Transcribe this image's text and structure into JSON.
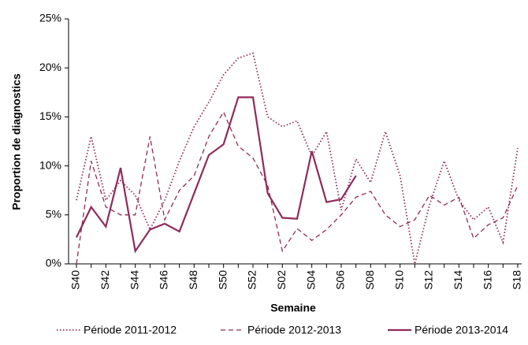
{
  "chart_data": {
    "type": "line",
    "y_label": "Proportion de diagnostics",
    "x_label": "Semaine",
    "categories": [
      "S40",
      null,
      "S42",
      null,
      "S44",
      null,
      "S46",
      null,
      "S48",
      null,
      "S50",
      null,
      "S52",
      null,
      "S02",
      null,
      "S04",
      null,
      "S06",
      null,
      "S08",
      null,
      "S10",
      null,
      "S12",
      null,
      "S14",
      null,
      "S16",
      null,
      "S18"
    ],
    "series": [
      {
        "name": "Période 2011-2012",
        "color": "#8e2b5a",
        "style": "dotted",
        "values": [
          6.5,
          13,
          6.5,
          8.5,
          7,
          3.5,
          6.5,
          10.5,
          14,
          16.5,
          19.3,
          21,
          21.5,
          15,
          14,
          14.6,
          11,
          13.5,
          5.5,
          10.7,
          8.3,
          13.5,
          9,
          0,
          6,
          10.5,
          6.5,
          4.5,
          5.8,
          2.2,
          11.8
        ]
      },
      {
        "name": "Période 2012-2013",
        "color": "#8e2b5a",
        "style": "dashed",
        "values": [
          0,
          10.5,
          5.8,
          5,
          5,
          13,
          4.5,
          7.5,
          9,
          13,
          15.5,
          12,
          10.8,
          8,
          1.3,
          3.6,
          2.4,
          3.5,
          5,
          6.8,
          7.4,
          5,
          3.8,
          4.5,
          7,
          6,
          6.8,
          2.6,
          4,
          4.7,
          8
        ]
      },
      {
        "name": "Période 2013-2014",
        "color": "#8e2b5a",
        "style": "solid",
        "values": [
          2.7,
          5.8,
          3.8,
          9.8,
          1.3,
          3.5,
          4.1,
          3.3,
          7.2,
          11.1,
          12.2,
          17,
          17,
          7.2,
          4.7,
          4.6,
          11.5,
          6.3,
          6.6,
          9,
          null,
          null,
          null,
          null,
          null,
          null,
          null,
          null,
          null,
          null,
          null
        ]
      }
    ],
    "ylim": [
      0,
      25
    ],
    "yticks": [
      {
        "value": 0,
        "label": "0%"
      },
      {
        "value": 5,
        "label": "5%"
      },
      {
        "value": 10,
        "label": "10%"
      },
      {
        "value": 15,
        "label": "15%"
      },
      {
        "value": 20,
        "label": "20%"
      },
      {
        "value": 25,
        "label": "25%"
      }
    ],
    "legend": "bottom"
  }
}
